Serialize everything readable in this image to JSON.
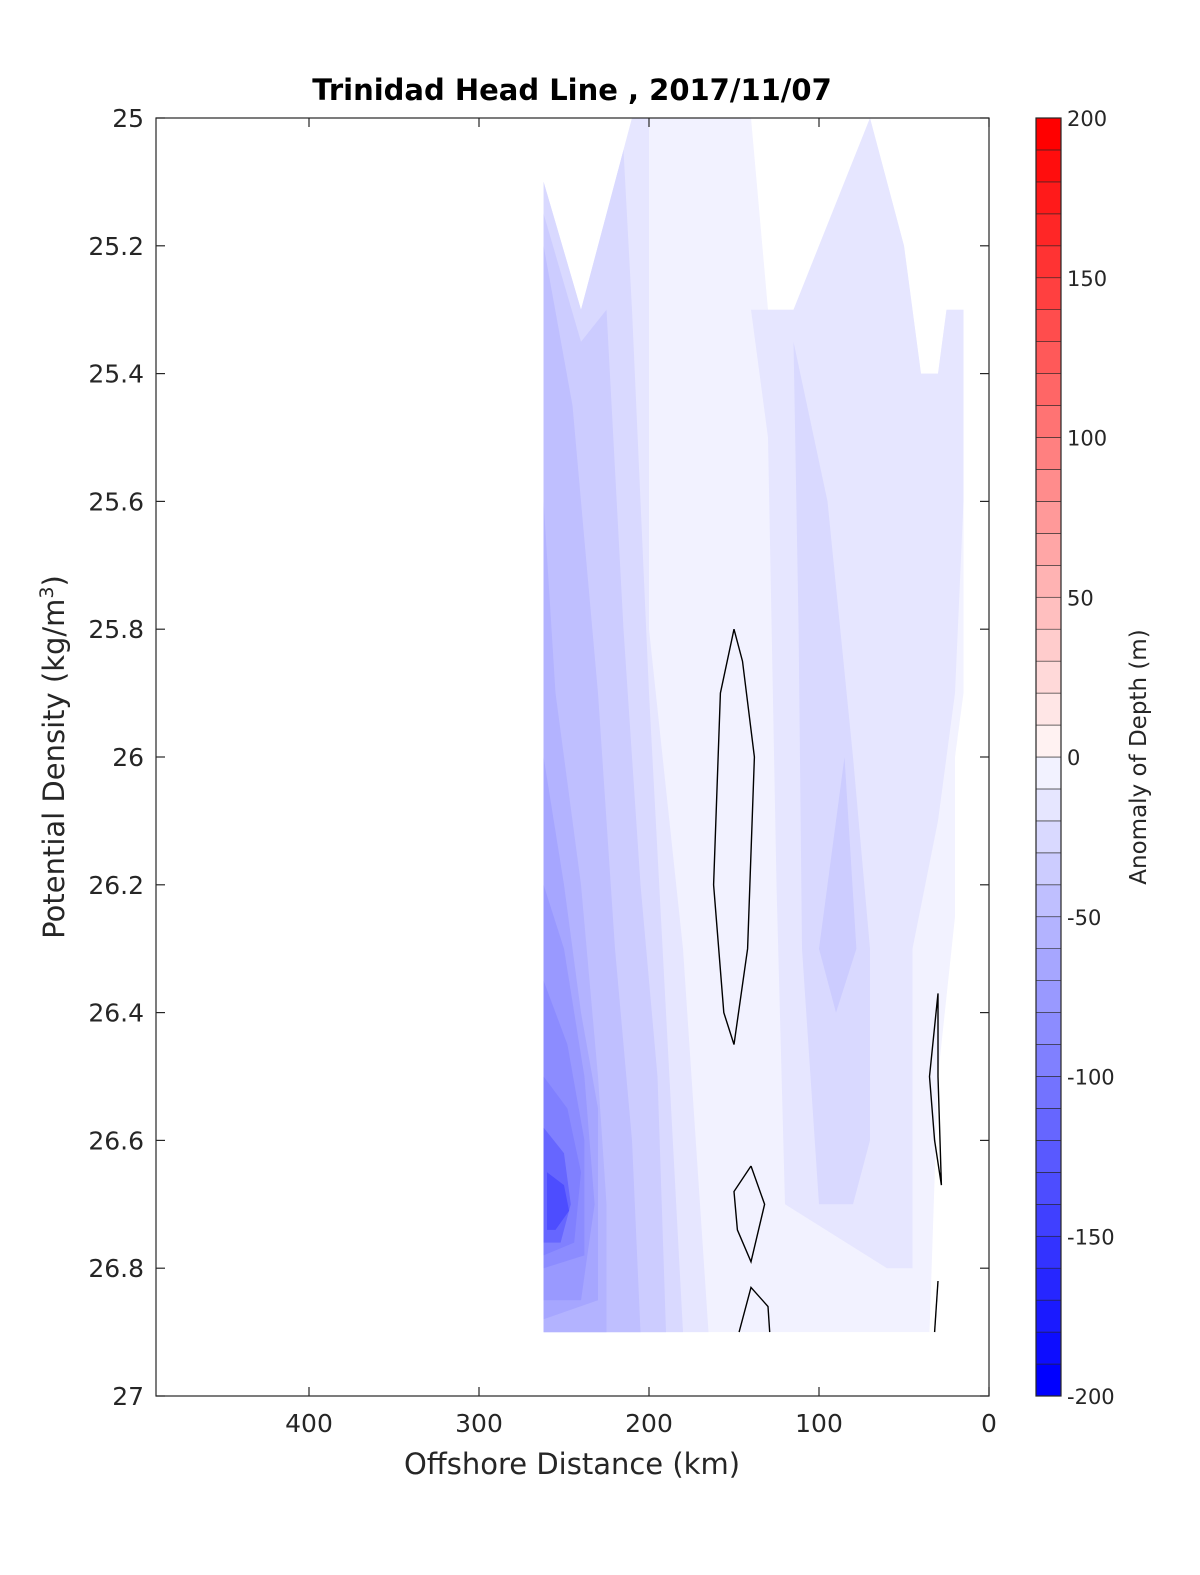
{
  "chart_data": {
    "type": "heatmap",
    "title": "Trinidad Head Line , 2017/11/07",
    "xlabel": "Offshore Distance (km)",
    "ylabel_main": "Potential Density (kg/m",
    "ylabel_sup": "3",
    "ylabel_close": ")",
    "xlim": [
      490,
      0
    ],
    "ylim": [
      25.0,
      27.0
    ],
    "x_reversed": true,
    "y_reversed": true,
    "x_ticks": [
      {
        "value": 400,
        "label": "400"
      },
      {
        "value": 300,
        "label": "300"
      },
      {
        "value": 200,
        "label": "200"
      },
      {
        "value": 100,
        "label": "100"
      },
      {
        "value": 0,
        "label": "0"
      }
    ],
    "y_ticks": [
      {
        "value": 25.0,
        "label": "25"
      },
      {
        "value": 25.2,
        "label": "25.2"
      },
      {
        "value": 25.4,
        "label": "25.4"
      },
      {
        "value": 25.6,
        "label": "25.6"
      },
      {
        "value": 25.8,
        "label": "25.8"
      },
      {
        "value": 26.0,
        "label": "26"
      },
      {
        "value": 26.2,
        "label": "26.2"
      },
      {
        "value": 26.4,
        "label": "26.4"
      },
      {
        "value": 26.6,
        "label": "26.6"
      },
      {
        "value": 26.8,
        "label": "26.8"
      },
      {
        "value": 27.0,
        "label": "27"
      }
    ],
    "colorbar": {
      "label": "Anomaly of Depth (m)",
      "range": [
        -200,
        200
      ],
      "step": 10,
      "neg_color": "#0000ff",
      "pos_color": "#ff0000",
      "ticks": [
        {
          "value": 200,
          "label": "200"
        },
        {
          "value": 150,
          "label": "150"
        },
        {
          "value": 100,
          "label": "100"
        },
        {
          "value": 50,
          "label": "50"
        },
        {
          "value": 0,
          "label": "0"
        },
        {
          "value": -50,
          "label": "-50"
        },
        {
          "value": -100,
          "label": "-100"
        },
        {
          "value": -150,
          "label": "-150"
        },
        {
          "value": -200,
          "label": "-200"
        }
      ]
    },
    "anomaly_regions": [
      {
        "level": -10,
        "points": [
          [
            262,
            25.1
          ],
          [
            240,
            25.3
          ],
          [
            210,
            25.0
          ],
          [
            140,
            25.0
          ],
          [
            130,
            25.3
          ],
          [
            115,
            25.3
          ],
          [
            100,
            25.2
          ],
          [
            70,
            25.0
          ],
          [
            50,
            25.2
          ],
          [
            40,
            25.4
          ],
          [
            30,
            25.4
          ],
          [
            25,
            25.3
          ],
          [
            15,
            25.3
          ],
          [
            15,
            25.9
          ],
          [
            20,
            26.0
          ],
          [
            20,
            26.25
          ],
          [
            30,
            26.5
          ],
          [
            35,
            26.9
          ],
          [
            262,
            26.9
          ]
        ]
      },
      {
        "level": -20,
        "points": [
          [
            262,
            25.1
          ],
          [
            240,
            25.3
          ],
          [
            210,
            25.0
          ],
          [
            200,
            25.0
          ],
          [
            200,
            25.8
          ],
          [
            180,
            26.3
          ],
          [
            165,
            26.9
          ],
          [
            262,
            26.9
          ]
        ]
      },
      {
        "level": -20,
        "points": [
          [
            140,
            25.3
          ],
          [
            115,
            25.3
          ],
          [
            100,
            25.2
          ],
          [
            70,
            25.0
          ],
          [
            50,
            25.2
          ],
          [
            40,
            25.4
          ],
          [
            30,
            25.4
          ],
          [
            25,
            25.3
          ],
          [
            15,
            25.3
          ],
          [
            15,
            25.6
          ],
          [
            20,
            25.9
          ],
          [
            30,
            26.1
          ],
          [
            45,
            26.3
          ],
          [
            45,
            26.8
          ],
          [
            60,
            26.8
          ],
          [
            120,
            26.7
          ],
          [
            125,
            26.2
          ],
          [
            130,
            25.5
          ]
        ]
      },
      {
        "level": -30,
        "points": [
          [
            262,
            25.1
          ],
          [
            240,
            25.3
          ],
          [
            215,
            25.05
          ],
          [
            210,
            25.3
          ],
          [
            200,
            25.9
          ],
          [
            190,
            26.4
          ],
          [
            180,
            26.9
          ],
          [
            262,
            26.9
          ]
        ]
      },
      {
        "level": -30,
        "points": [
          [
            115,
            25.35
          ],
          [
            95,
            25.6
          ],
          [
            80,
            26.0
          ],
          [
            70,
            26.3
          ],
          [
            70,
            26.6
          ],
          [
            80,
            26.7
          ],
          [
            100,
            26.7
          ],
          [
            110,
            26.3
          ],
          [
            112,
            25.8
          ]
        ]
      },
      {
        "level": -40,
        "points": [
          [
            262,
            25.15
          ],
          [
            240,
            25.35
          ],
          [
            225,
            25.3
          ],
          [
            215,
            25.8
          ],
          [
            205,
            26.2
          ],
          [
            195,
            26.5
          ],
          [
            190,
            26.9
          ],
          [
            262,
            26.9
          ]
        ]
      },
      {
        "level": -40,
        "points": [
          [
            85,
            26.0
          ],
          [
            78,
            26.3
          ],
          [
            90,
            26.4
          ],
          [
            100,
            26.3
          ]
        ]
      },
      {
        "level": -50,
        "points": [
          [
            262,
            25.2
          ],
          [
            245,
            25.45
          ],
          [
            230,
            25.9
          ],
          [
            220,
            26.3
          ],
          [
            210,
            26.6
          ],
          [
            205,
            26.9
          ],
          [
            262,
            26.9
          ]
        ]
      },
      {
        "level": -60,
        "points": [
          [
            262,
            25.6
          ],
          [
            255,
            25.9
          ],
          [
            240,
            26.2
          ],
          [
            230,
            26.5
          ],
          [
            225,
            26.7
          ],
          [
            225,
            26.9
          ],
          [
            262,
            26.9
          ]
        ]
      },
      {
        "level": -70,
        "points": [
          [
            262,
            26.0
          ],
          [
            250,
            26.2
          ],
          [
            240,
            26.4
          ],
          [
            230,
            26.55
          ],
          [
            230,
            26.85
          ],
          [
            262,
            26.88
          ]
        ]
      },
      {
        "level": -80,
        "points": [
          [
            262,
            26.2
          ],
          [
            250,
            26.3
          ],
          [
            238,
            26.5
          ],
          [
            232,
            26.7
          ],
          [
            240,
            26.85
          ],
          [
            262,
            26.85
          ]
        ]
      },
      {
        "level": -90,
        "points": [
          [
            262,
            26.35
          ],
          [
            248,
            26.45
          ],
          [
            238,
            26.6
          ],
          [
            238,
            26.78
          ],
          [
            262,
            26.8
          ]
        ]
      },
      {
        "level": -100,
        "points": [
          [
            262,
            26.5
          ],
          [
            248,
            26.55
          ],
          [
            240,
            26.65
          ],
          [
            244,
            26.76
          ],
          [
            262,
            26.78
          ]
        ]
      },
      {
        "level": -120,
        "points": [
          [
            262,
            26.58
          ],
          [
            250,
            26.62
          ],
          [
            246,
            26.7
          ],
          [
            252,
            26.76
          ],
          [
            262,
            26.76
          ]
        ]
      },
      {
        "level": -140,
        "points": [
          [
            260,
            26.65
          ],
          [
            250,
            26.67
          ],
          [
            247,
            26.71
          ],
          [
            255,
            26.74
          ],
          [
            260,
            26.74
          ]
        ]
      }
    ],
    "zero_contours": [
      [
        [
          150,
          25.8
        ],
        [
          158,
          25.9
        ],
        [
          162,
          26.2
        ],
        [
          156,
          26.4
        ],
        [
          150,
          26.45
        ],
        [
          142,
          26.3
        ],
        [
          138,
          26.0
        ],
        [
          145,
          25.85
        ],
        [
          150,
          25.8
        ]
      ],
      [
        [
          140,
          26.64
        ],
        [
          150,
          26.68
        ],
        [
          148,
          26.74
        ],
        [
          140,
          26.79
        ],
        [
          132,
          26.7
        ],
        [
          140,
          26.64
        ]
      ],
      [
        [
          147,
          26.9
        ],
        [
          140,
          26.83
        ],
        [
          130,
          26.86
        ],
        [
          129,
          26.9
        ]
      ],
      [
        [
          30,
          26.37
        ],
        [
          35,
          26.5
        ],
        [
          32,
          26.6
        ],
        [
          28,
          26.67
        ],
        [
          30,
          26.5
        ],
        [
          30,
          26.37
        ]
      ],
      [
        [
          30,
          26.82
        ],
        [
          32,
          26.9
        ]
      ]
    ]
  }
}
